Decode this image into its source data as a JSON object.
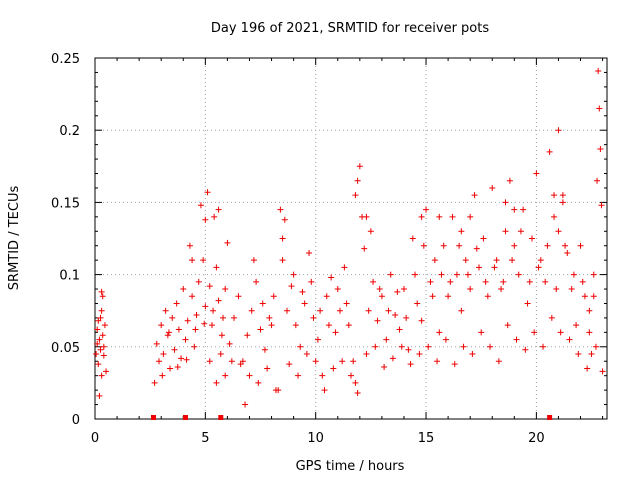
{
  "chart_data": {
    "type": "scatter",
    "title": "Day 196 of 2021, SRMTID for receiver pots",
    "xlabel": "GPS time / hours",
    "ylabel": "SRMTID / TECUs",
    "xlim": [
      0,
      23.2
    ],
    "ylim": [
      0,
      0.25
    ],
    "xticks": [
      0,
      5,
      10,
      15,
      20
    ],
    "xtick_labels": [
      "0",
      "5",
      "10",
      "15",
      "20"
    ],
    "yticks": [
      0,
      0.05,
      0.1,
      0.15,
      0.2,
      0.25
    ],
    "ytick_labels": [
      "0",
      "0.05",
      "0.1",
      "0.15",
      "0.2",
      "0.25"
    ],
    "grid": true,
    "marker": "+",
    "color": "#ee0000",
    "series": [
      {
        "name": "SRMTID",
        "points": [
          [
            0.05,
            0.045
          ],
          [
            0.1,
            0.062
          ],
          [
            0.15,
            0.038
          ],
          [
            0.2,
            0.055
          ],
          [
            0.25,
            0.07
          ],
          [
            0.3,
            0.03
          ],
          [
            0.35,
            0.085
          ],
          [
            0.1,
            0.052
          ],
          [
            0.2,
            0.016
          ],
          [
            0.25,
            0.048
          ],
          [
            0.3,
            0.075
          ],
          [
            0.35,
            0.058
          ],
          [
            0.4,
            0.044
          ],
          [
            0.45,
            0.065
          ],
          [
            0.5,
            0.033
          ],
          [
            0.15,
            0.068
          ],
          [
            0.3,
            0.088
          ],
          [
            0.4,
            0.05
          ],
          [
            2.7,
            0.025
          ],
          [
            2.8,
            0.052
          ],
          [
            2.9,
            0.04
          ],
          [
            3.0,
            0.065
          ],
          [
            3.1,
            0.045
          ],
          [
            3.2,
            0.075
          ],
          [
            3.3,
            0.058
          ],
          [
            3.4,
            0.035
          ],
          [
            3.5,
            0.07
          ],
          [
            3.6,
            0.048
          ],
          [
            3.7,
            0.08
          ],
          [
            3.8,
            0.062
          ],
          [
            3.9,
            0.042
          ],
          [
            4.0,
            0.09
          ],
          [
            4.1,
            0.055
          ],
          [
            4.2,
            0.068
          ],
          [
            4.3,
            0.12
          ],
          [
            4.4,
            0.085
          ],
          [
            4.5,
            0.05
          ],
          [
            4.6,
            0.072
          ],
          [
            4.7,
            0.095
          ],
          [
            4.8,
            0.148
          ],
          [
            4.9,
            0.11
          ],
          [
            5.0,
            0.078
          ],
          [
            5.1,
            0.157
          ],
          [
            5.2,
            0.092
          ],
          [
            5.3,
            0.065
          ],
          [
            5.4,
            0.14
          ],
          [
            5.5,
            0.105
          ],
          [
            5.6,
            0.082
          ],
          [
            5.7,
            0.045
          ],
          [
            5.8,
            0.07
          ],
          [
            5.9,
            0.09
          ],
          [
            6.0,
            0.122
          ],
          [
            3.05,
            0.03
          ],
          [
            3.35,
            0.06
          ],
          [
            3.75,
            0.036
          ],
          [
            4.15,
            0.041
          ],
          [
            4.55,
            0.062
          ],
          [
            4.95,
            0.066
          ],
          [
            5.35,
            0.075
          ],
          [
            5.75,
            0.058
          ],
          [
            6.1,
            0.052
          ],
          [
            6.3,
            0.07
          ],
          [
            6.5,
            0.085
          ],
          [
            6.7,
            0.04
          ],
          [
            6.9,
            0.058
          ],
          [
            7.1,
            0.075
          ],
          [
            7.3,
            0.095
          ],
          [
            7.5,
            0.062
          ],
          [
            7.7,
            0.048
          ],
          [
            7.9,
            0.07
          ],
          [
            8.1,
            0.085
          ],
          [
            8.3,
            0.02
          ],
          [
            8.4,
            0.145
          ],
          [
            8.5,
            0.11
          ],
          [
            8.7,
            0.075
          ],
          [
            8.9,
            0.092
          ],
          [
            9.1,
            0.065
          ],
          [
            9.3,
            0.05
          ],
          [
            9.5,
            0.08
          ],
          [
            9.7,
            0.115
          ],
          [
            9.9,
            0.07
          ],
          [
            10.1,
            0.055
          ],
          [
            10.3,
            0.03
          ],
          [
            10.5,
            0.085
          ],
          [
            10.7,
            0.098
          ],
          [
            10.9,
            0.06
          ],
          [
            11.1,
            0.075
          ],
          [
            11.3,
            0.105
          ],
          [
            11.5,
            0.065
          ],
          [
            11.7,
            0.04
          ],
          [
            11.8,
            0.025
          ],
          [
            11.9,
            0.165
          ],
          [
            12.0,
            0.175
          ],
          [
            12.1,
            0.14
          ],
          [
            12.2,
            0.118
          ],
          [
            12.4,
            0.075
          ],
          [
            12.6,
            0.095
          ],
          [
            12.8,
            0.068
          ],
          [
            13.0,
            0.085
          ],
          [
            13.2,
            0.055
          ],
          [
            13.4,
            0.1
          ],
          [
            13.6,
            0.072
          ],
          [
            13.8,
            0.062
          ],
          [
            14.0,
            0.09
          ],
          [
            14.2,
            0.048
          ],
          [
            14.4,
            0.125
          ],
          [
            14.6,
            0.08
          ],
          [
            14.8,
            0.068
          ],
          [
            15.0,
            0.145
          ],
          [
            15.2,
            0.095
          ],
          [
            15.4,
            0.11
          ],
          [
            15.6,
            0.06
          ],
          [
            15.8,
            0.12
          ],
          [
            16.0,
            0.085
          ],
          [
            16.2,
            0.14
          ],
          [
            16.4,
            0.1
          ],
          [
            16.6,
            0.075
          ],
          [
            16.8,
            0.11
          ],
          [
            17.0,
            0.09
          ],
          [
            17.2,
            0.155
          ],
          [
            17.4,
            0.105
          ],
          [
            17.6,
            0.125
          ],
          [
            17.8,
            0.085
          ],
          [
            18.0,
            0.16
          ],
          [
            18.2,
            0.11
          ],
          [
            18.4,
            0.09
          ],
          [
            18.6,
            0.13
          ],
          [
            18.8,
            0.165
          ],
          [
            19.0,
            0.12
          ],
          [
            19.2,
            0.1
          ],
          [
            19.4,
            0.145
          ],
          [
            19.6,
            0.08
          ],
          [
            19.8,
            0.125
          ],
          [
            20.0,
            0.17
          ],
          [
            20.2,
            0.11
          ],
          [
            20.4,
            0.095
          ],
          [
            20.6,
            0.185
          ],
          [
            20.8,
            0.14
          ],
          [
            21.0,
            0.2
          ],
          [
            21.2,
            0.15
          ],
          [
            21.4,
            0.115
          ],
          [
            21.6,
            0.09
          ],
          [
            21.8,
            0.065
          ],
          [
            22.0,
            0.12
          ],
          [
            22.2,
            0.085
          ],
          [
            22.4,
            0.06
          ],
          [
            22.6,
            0.1
          ],
          [
            22.8,
            0.241
          ],
          [
            22.85,
            0.215
          ],
          [
            22.9,
            0.187
          ],
          [
            22.75,
            0.165
          ],
          [
            22.95,
            0.148
          ],
          [
            23.0,
            0.033
          ],
          [
            22.7,
            0.05
          ],
          [
            22.5,
            0.045
          ],
          [
            22.3,
            0.035
          ],
          [
            21.9,
            0.045
          ],
          [
            21.5,
            0.055
          ],
          [
            21.1,
            0.06
          ],
          [
            20.7,
            0.07
          ],
          [
            20.3,
            0.05
          ],
          [
            19.9,
            0.06
          ],
          [
            19.5,
            0.048
          ],
          [
            19.1,
            0.055
          ],
          [
            18.7,
            0.065
          ],
          [
            18.3,
            0.04
          ],
          [
            17.9,
            0.05
          ],
          [
            17.5,
            0.06
          ],
          [
            17.1,
            0.045
          ],
          [
            16.7,
            0.05
          ],
          [
            16.3,
            0.038
          ],
          [
            15.9,
            0.055
          ],
          [
            15.5,
            0.04
          ],
          [
            15.1,
            0.05
          ],
          [
            14.7,
            0.045
          ],
          [
            14.3,
            0.038
          ],
          [
            13.9,
            0.05
          ],
          [
            13.5,
            0.042
          ],
          [
            13.1,
            0.036
          ],
          [
            12.7,
            0.05
          ],
          [
            12.3,
            0.045
          ],
          [
            11.9,
            0.018
          ],
          [
            11.6,
            0.03
          ],
          [
            11.2,
            0.04
          ],
          [
            10.8,
            0.035
          ],
          [
            10.4,
            0.02
          ],
          [
            10.0,
            0.04
          ],
          [
            9.6,
            0.045
          ],
          [
            9.2,
            0.03
          ],
          [
            8.8,
            0.038
          ],
          [
            8.2,
            0.02
          ],
          [
            7.8,
            0.035
          ],
          [
            7.4,
            0.025
          ],
          [
            7.0,
            0.03
          ],
          [
            6.8,
            0.01
          ],
          [
            6.6,
            0.038
          ],
          [
            6.2,
            0.04
          ],
          [
            5.9,
            0.03
          ],
          [
            5.5,
            0.025
          ],
          [
            5.2,
            0.04
          ],
          [
            7.2,
            0.11
          ],
          [
            7.6,
            0.08
          ],
          [
            8.0,
            0.065
          ],
          [
            8.6,
            0.138
          ],
          [
            9.0,
            0.1
          ],
          [
            9.4,
            0.088
          ],
          [
            9.8,
            0.095
          ],
          [
            10.2,
            0.075
          ],
          [
            10.6,
            0.065
          ],
          [
            11.0,
            0.09
          ],
          [
            11.4,
            0.08
          ],
          [
            12.5,
            0.13
          ],
          [
            12.9,
            0.09
          ],
          [
            13.3,
            0.075
          ],
          [
            13.7,
            0.088
          ],
          [
            14.1,
            0.07
          ],
          [
            14.5,
            0.1
          ],
          [
            14.9,
            0.12
          ],
          [
            15.3,
            0.085
          ],
          [
            15.7,
            0.1
          ],
          [
            16.1,
            0.095
          ],
          [
            16.5,
            0.12
          ],
          [
            16.9,
            0.1
          ],
          [
            17.3,
            0.118
          ],
          [
            17.7,
            0.095
          ],
          [
            18.1,
            0.105
          ],
          [
            18.5,
            0.095
          ],
          [
            18.9,
            0.11
          ],
          [
            19.3,
            0.13
          ],
          [
            19.7,
            0.095
          ],
          [
            20.1,
            0.105
          ],
          [
            20.5,
            0.12
          ],
          [
            20.9,
            0.09
          ],
          [
            21.3,
            0.12
          ],
          [
            21.7,
            0.1
          ],
          [
            22.1,
            0.095
          ],
          [
            22.4,
            0.075
          ],
          [
            22.6,
            0.085
          ],
          [
            21.2,
            0.155
          ],
          [
            21.0,
            0.13
          ],
          [
            20.8,
            0.155
          ],
          [
            19.0,
            0.145
          ],
          [
            18.6,
            0.15
          ],
          [
            17.0,
            0.14
          ],
          [
            16.6,
            0.13
          ],
          [
            15.6,
            0.14
          ],
          [
            14.8,
            0.14
          ],
          [
            12.3,
            0.14
          ],
          [
            11.8,
            0.155
          ],
          [
            8.5,
            0.125
          ],
          [
            5.6,
            0.145
          ],
          [
            5.0,
            0.138
          ],
          [
            4.4,
            0.11
          ]
        ]
      }
    ],
    "baseline_points": [
      [
        2.65,
        0
      ],
      [
        4.1,
        0
      ],
      [
        5.7,
        0
      ],
      [
        20.6,
        0
      ]
    ]
  }
}
